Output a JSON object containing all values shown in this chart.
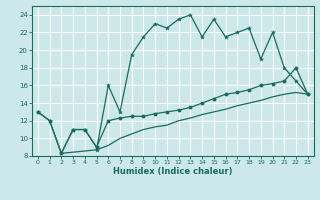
{
  "xlabel": "Humidex (Indice chaleur)",
  "bg_color": "#cce8ea",
  "grid_color": "#ffffff",
  "line_color": "#1a6b5e",
  "xlim": [
    -0.5,
    23.5
  ],
  "ylim": [
    8,
    25
  ],
  "xticks": [
    0,
    1,
    2,
    3,
    4,
    5,
    6,
    7,
    8,
    9,
    10,
    11,
    12,
    13,
    14,
    15,
    16,
    17,
    18,
    19,
    20,
    21,
    22,
    23
  ],
  "yticks": [
    8,
    10,
    12,
    14,
    16,
    18,
    20,
    22,
    24
  ],
  "line1_x": [
    0,
    1,
    2,
    3,
    4,
    5,
    5,
    6,
    7,
    8,
    9,
    10,
    11,
    12,
    13,
    14,
    15,
    16,
    17,
    18,
    19,
    20,
    21,
    22,
    23
  ],
  "line1_y": [
    13,
    12,
    8.3,
    11,
    11,
    9,
    8.7,
    16,
    13,
    19.5,
    21.5,
    23,
    22.5,
    23.5,
    24,
    21.5,
    23.5,
    21.5,
    22,
    22.5,
    19,
    22,
    18,
    16.5,
    15
  ],
  "line2_x": [
    0,
    1,
    2,
    3,
    4,
    5,
    6,
    7,
    8,
    9,
    10,
    11,
    12,
    13,
    14,
    15,
    16,
    17,
    18,
    19,
    20,
    21,
    22,
    23
  ],
  "line2_y": [
    13,
    12,
    8.3,
    11,
    11,
    9,
    12,
    12.3,
    12.5,
    12.5,
    12.8,
    13,
    13.2,
    13.5,
    14,
    14.5,
    15,
    15.2,
    15.5,
    16,
    16.2,
    16.5,
    18,
    15
  ],
  "line3_x": [
    2,
    5,
    6,
    7,
    8,
    9,
    10,
    11,
    12,
    13,
    14,
    15,
    16,
    17,
    18,
    19,
    20,
    21,
    22,
    23
  ],
  "line3_y": [
    8.3,
    8.7,
    9.2,
    10,
    10.5,
    11,
    11.3,
    11.5,
    12,
    12.3,
    12.7,
    13,
    13.3,
    13.7,
    14,
    14.3,
    14.7,
    15,
    15.2,
    15
  ]
}
